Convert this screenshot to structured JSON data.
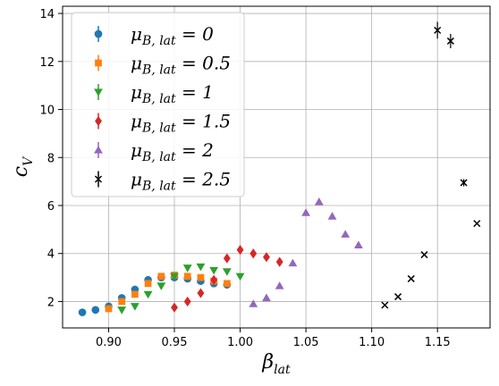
{
  "chart_data": {
    "type": "scatter",
    "xlabel": "βlat",
    "ylabel": "cV",
    "xlim": [
      0.865,
      1.19
    ],
    "ylim": [
      0.9,
      14.3
    ],
    "xticks": [
      "0.90",
      "0.95",
      "1.00",
      "1.05",
      "1.10",
      "1.15"
    ],
    "yticks": [
      "2",
      "4",
      "6",
      "8",
      "10",
      "12",
      "14"
    ],
    "grid": true,
    "legend_position": "top-left",
    "series": [
      {
        "name": "μB,lat = 0",
        "color": "#1f77b4",
        "marker": "circle",
        "points": [
          [
            0.88,
            1.55
          ],
          [
            0.89,
            1.65
          ],
          [
            0.9,
            1.8
          ],
          [
            0.91,
            2.15
          ],
          [
            0.92,
            2.5
          ],
          [
            0.93,
            2.9
          ],
          [
            0.94,
            3.0
          ],
          [
            0.95,
            3.0
          ],
          [
            0.96,
            2.95
          ],
          [
            0.97,
            2.85
          ],
          [
            0.98,
            2.75
          ],
          [
            0.99,
            2.7
          ]
        ]
      },
      {
        "name": "μB,lat = 0.5",
        "color": "#ff7f0e",
        "marker": "square",
        "points": [
          [
            0.9,
            1.7
          ],
          [
            0.91,
            2.0
          ],
          [
            0.92,
            2.3
          ],
          [
            0.93,
            2.75
          ],
          [
            0.94,
            3.05
          ],
          [
            0.95,
            3.1
          ],
          [
            0.96,
            3.05
          ],
          [
            0.97,
            3.0
          ],
          [
            0.98,
            2.85
          ],
          [
            0.99,
            2.75
          ]
        ]
      },
      {
        "name": "μB,lat = 1",
        "color": "#2ca02c",
        "marker": "triangle-down",
        "points": [
          [
            0.91,
            1.65
          ],
          [
            0.92,
            1.8
          ],
          [
            0.93,
            2.3
          ],
          [
            0.94,
            2.65
          ],
          [
            0.95,
            3.05
          ],
          [
            0.96,
            3.4
          ],
          [
            0.97,
            3.45
          ],
          [
            0.98,
            3.3
          ],
          [
            0.99,
            3.25
          ],
          [
            1.0,
            3.05
          ]
        ]
      },
      {
        "name": "μB,lat = 1.5",
        "color": "#d62728",
        "marker": "diamond",
        "points": [
          [
            0.95,
            1.75
          ],
          [
            0.96,
            2.0
          ],
          [
            0.97,
            2.35
          ],
          [
            0.98,
            2.9
          ],
          [
            0.99,
            3.8
          ],
          [
            1.0,
            4.15
          ],
          [
            1.01,
            4.0
          ],
          [
            1.02,
            3.85
          ],
          [
            1.03,
            3.65
          ]
        ]
      },
      {
        "name": "μB,lat = 2",
        "color": "#9467bd",
        "marker": "triangle-up",
        "points": [
          [
            1.01,
            1.9
          ],
          [
            1.02,
            2.15
          ],
          [
            1.03,
            2.65
          ],
          [
            1.04,
            3.6
          ],
          [
            1.05,
            5.7
          ],
          [
            1.06,
            6.15
          ],
          [
            1.07,
            5.55
          ],
          [
            1.08,
            4.8
          ],
          [
            1.09,
            4.35
          ]
        ]
      },
      {
        "name": "μB,lat = 2.5",
        "color": "#000000",
        "marker": "x",
        "points": [
          [
            1.11,
            1.85
          ],
          [
            1.12,
            2.2
          ],
          [
            1.13,
            2.95
          ],
          [
            1.14,
            3.95
          ],
          [
            1.15,
            13.3
          ],
          [
            1.16,
            12.85
          ],
          [
            1.17,
            6.95
          ],
          [
            1.18,
            5.25
          ]
        ]
      }
    ]
  },
  "legend": [
    {
      "base": "μ",
      "sub": "B, lat",
      "eq": " = 0"
    },
    {
      "base": "μ",
      "sub": "B, lat",
      "eq": " = 0.5"
    },
    {
      "base": "μ",
      "sub": "B, lat",
      "eq": " = 1"
    },
    {
      "base": "μ",
      "sub": "B, lat",
      "eq": " = 1.5"
    },
    {
      "base": "μ",
      "sub": "B, lat",
      "eq": " = 2"
    },
    {
      "base": "μ",
      "sub": "B, lat",
      "eq": " = 2.5"
    }
  ],
  "axes": {
    "x_base": "β",
    "x_sub": "lat",
    "y_base": "c",
    "y_sub": "V"
  }
}
